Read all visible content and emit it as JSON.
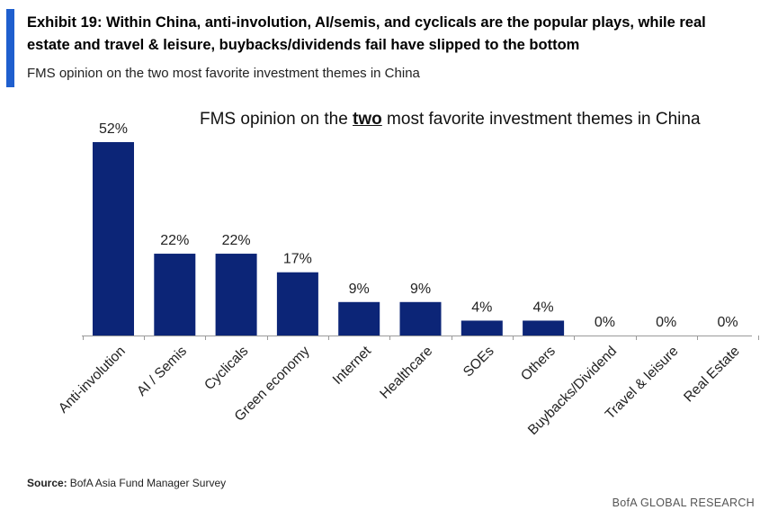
{
  "exhibit": {
    "title": "Exhibit 19: Within China, anti-involution, AI/semis, and cyclicals are the popular plays, while real estate and travel & leisure, buybacks/dividends fail have slipped to the bottom",
    "subtitle": "FMS opinion on the two most favorite investment themes in China",
    "accent_color": "#1f5fce"
  },
  "chart_heading": {
    "before": "FMS opinion on the ",
    "emphasis": "two",
    "after": " most favorite investment themes in China"
  },
  "chart_data": {
    "type": "bar",
    "categories": [
      "Anti-involution",
      "AI / Semis",
      "Cyclicals",
      "Green economy",
      "Internet",
      "Healthcare",
      "SOEs",
      "Others",
      "Buybacks/Dividend",
      "Travel & leisure",
      "Real Estate"
    ],
    "values": [
      52,
      22,
      22,
      17,
      9,
      9,
      4,
      4,
      0,
      0,
      0
    ],
    "data_labels": [
      "52%",
      "22%",
      "22%",
      "17%",
      "9%",
      "9%",
      "4%",
      "4%",
      "0%",
      "0%",
      "0%"
    ],
    "unit": "%",
    "bar_color": "#0c2577",
    "ylim": [
      0,
      52
    ],
    "grid": false,
    "xlabel": "",
    "ylabel": ""
  },
  "source": {
    "label": "Source:",
    "text": "BofA Asia Fund Manager Survey"
  },
  "brand": "BofA GLOBAL RESEARCH"
}
